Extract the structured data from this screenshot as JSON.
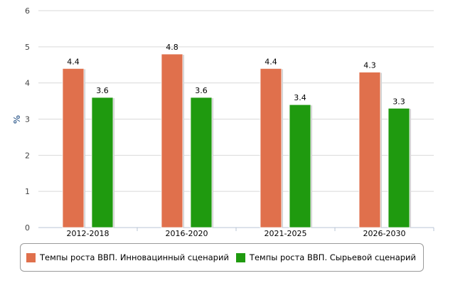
{
  "chart_data": {
    "type": "bar",
    "title": "",
    "xlabel": "",
    "ylabel": "%",
    "ylim": [
      0,
      6
    ],
    "yticks": [
      0,
      1,
      2,
      3,
      4,
      5,
      6
    ],
    "grid": true,
    "legend_position": "bottom",
    "categories": [
      "2012-2018",
      "2016-2020",
      "2021-2025",
      "2026-2030"
    ],
    "series": [
      {
        "name": "Темпы роста ВВП. Инновацинный сценарий",
        "color": "#e0704c",
        "values": [
          4.4,
          4.8,
          4.4,
          4.3
        ]
      },
      {
        "name": "Темпы роста ВВП. Сырьевой сценарий",
        "color": "#1f9a0f",
        "values": [
          3.6,
          3.6,
          3.4,
          3.3
        ]
      }
    ]
  }
}
